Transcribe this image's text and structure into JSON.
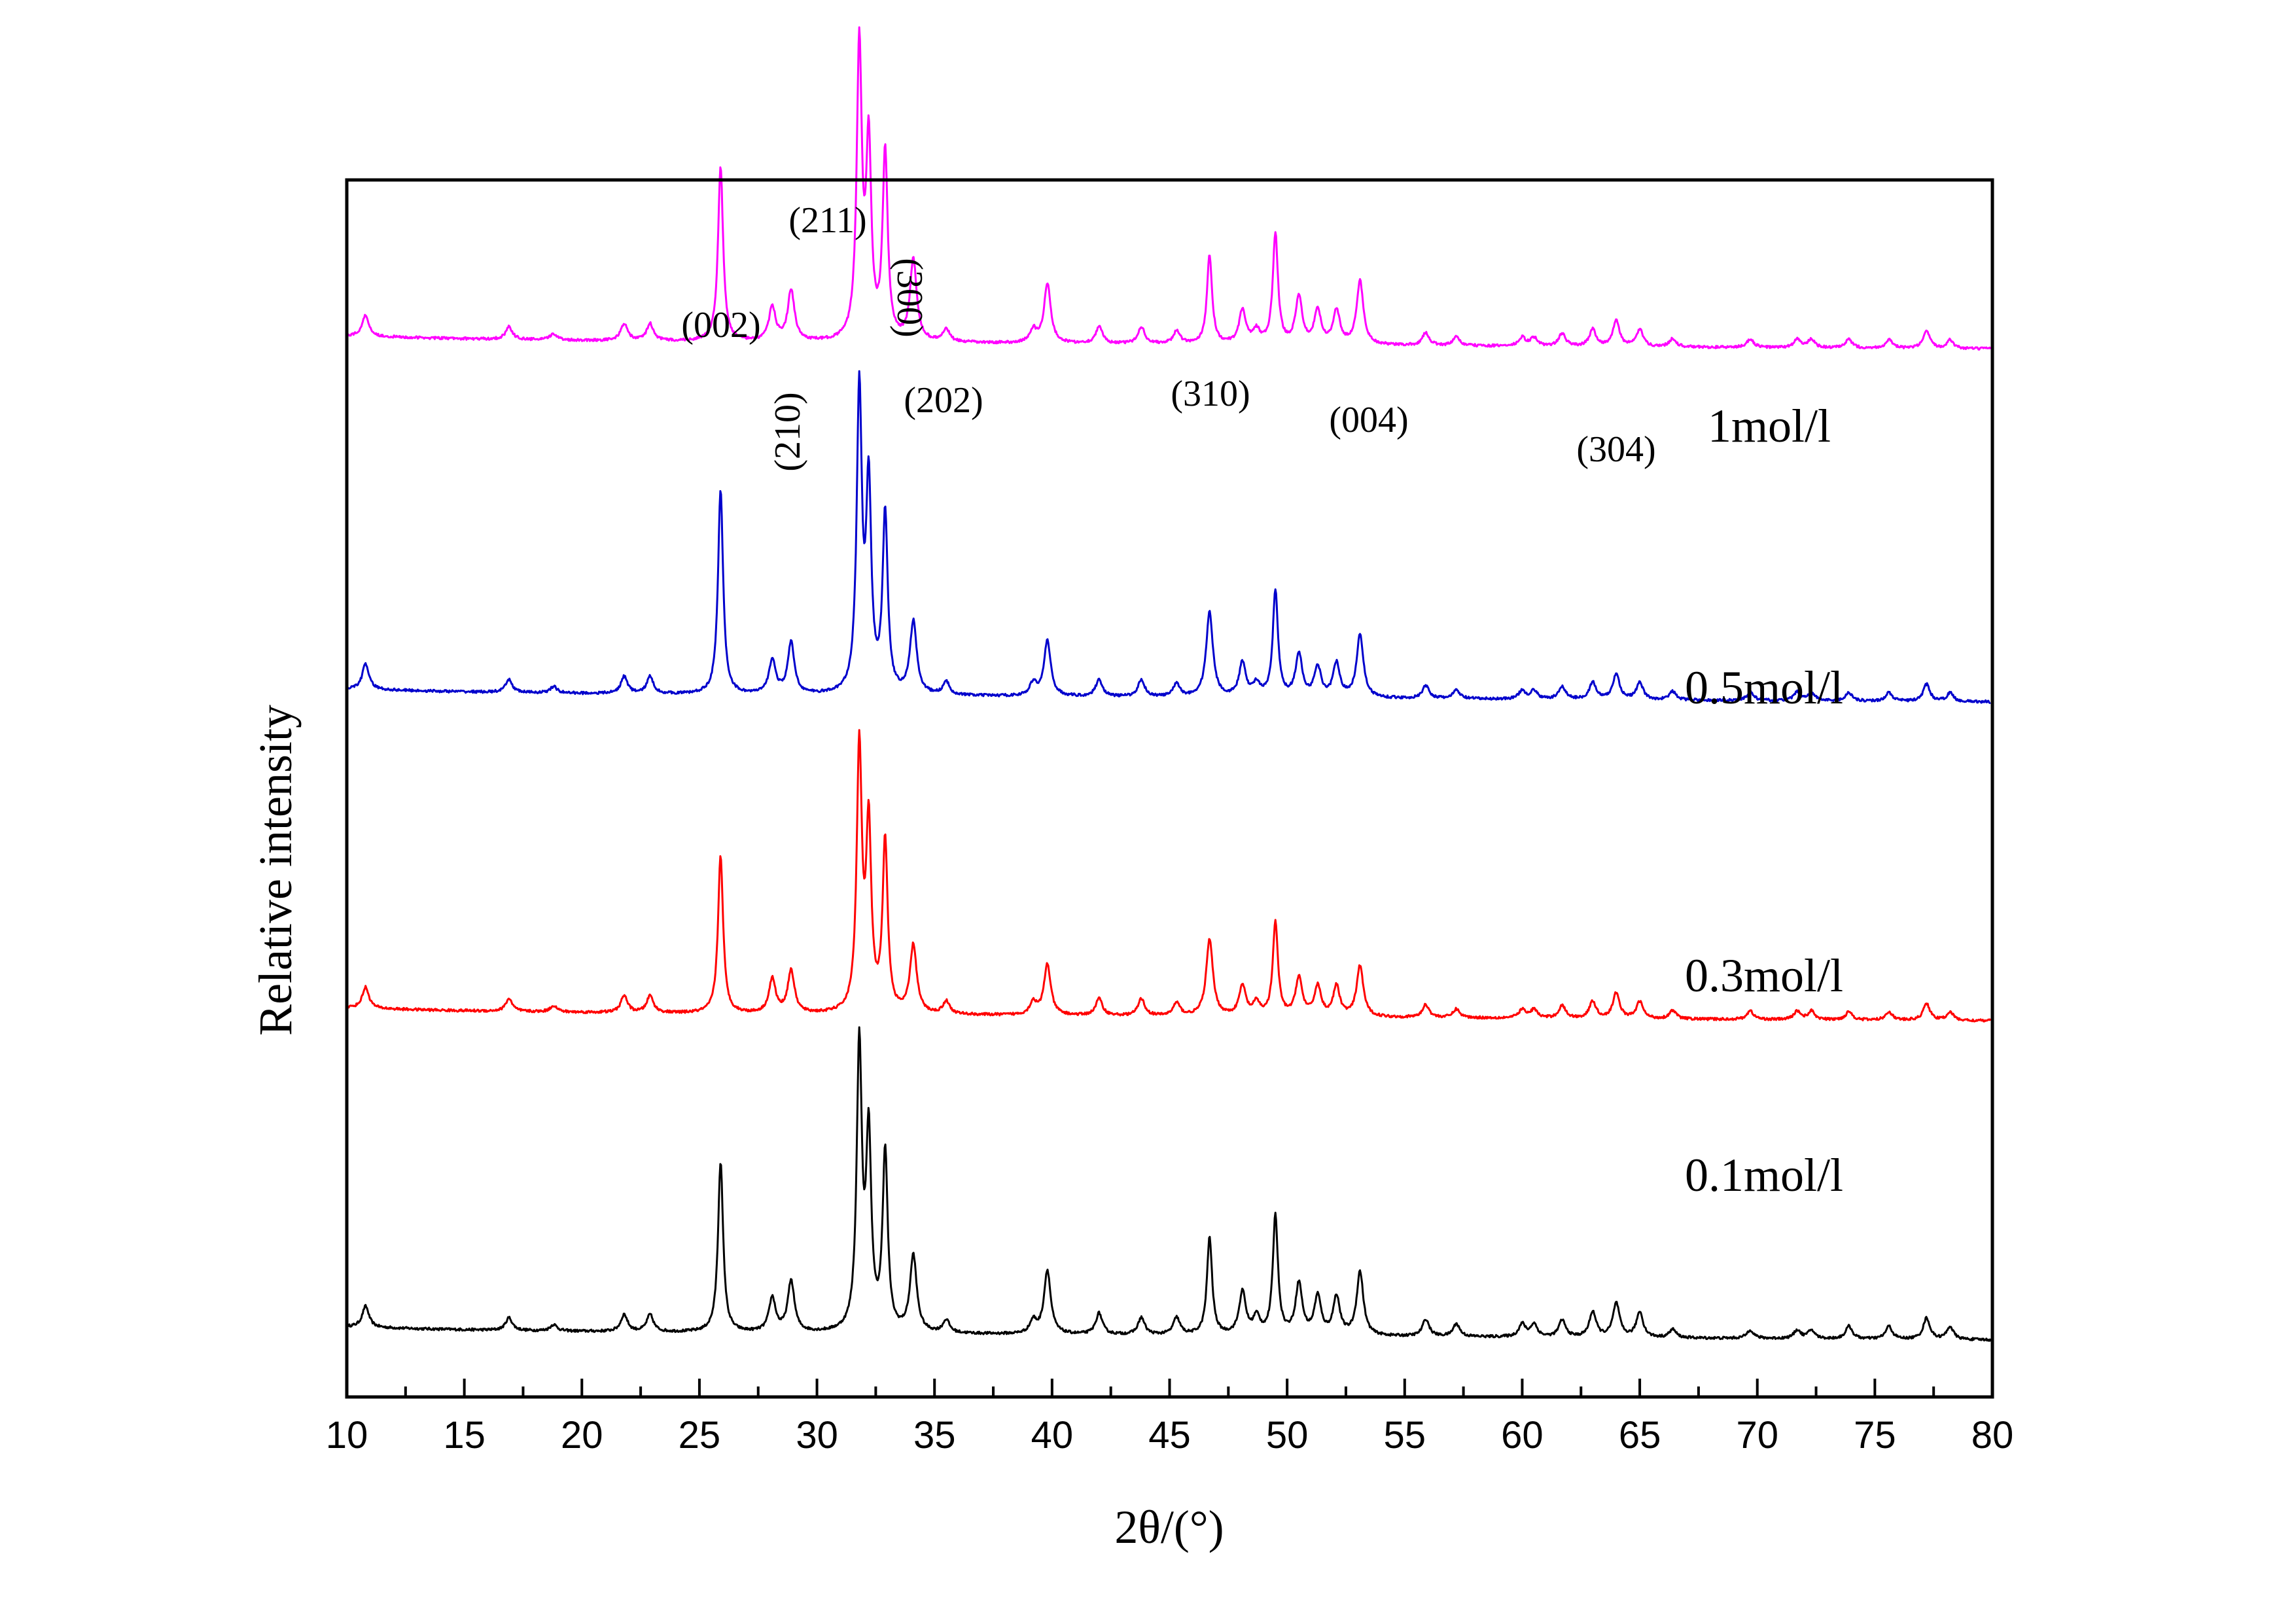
{
  "chart_data": {
    "type": "line",
    "title": "",
    "xlabel": "2θ/(°)",
    "ylabel": "Relative intensity",
    "xlim": [
      10,
      80
    ],
    "xticks": [
      10,
      15,
      20,
      25,
      30,
      35,
      40,
      45,
      50,
      55,
      60,
      65,
      70,
      75,
      80
    ],
    "yticks_shown": false,
    "grid": false,
    "legend": "none (inline labels at right)",
    "series": [
      {
        "name": "0.1mol/l",
        "color": "#000000",
        "offset": 0,
        "peaks": [
          [
            10.8,
            5
          ],
          [
            16.9,
            3
          ],
          [
            18.8,
            1.5
          ],
          [
            21.8,
            4
          ],
          [
            22.9,
            4
          ],
          [
            25.9,
            40
          ],
          [
            28.1,
            8
          ],
          [
            28.9,
            12
          ],
          [
            31.8,
            67
          ],
          [
            32.2,
            45
          ],
          [
            32.9,
            42
          ],
          [
            34.1,
            18
          ],
          [
            35.5,
            3
          ],
          [
            39.2,
            3
          ],
          [
            39.8,
            15
          ],
          [
            42.0,
            5
          ],
          [
            43.8,
            4
          ],
          [
            45.3,
            4
          ],
          [
            46.7,
            23
          ],
          [
            48.1,
            10
          ],
          [
            48.7,
            4
          ],
          [
            49.5,
            28
          ],
          [
            50.5,
            12
          ],
          [
            51.3,
            9
          ],
          [
            52.1,
            9
          ],
          [
            53.1,
            15
          ],
          [
            55.9,
            4
          ],
          [
            57.2,
            3
          ],
          [
            60.0,
            3
          ],
          [
            60.5,
            3
          ],
          [
            61.7,
            4
          ],
          [
            63.0,
            6
          ],
          [
            64.0,
            8
          ],
          [
            65.0,
            6
          ],
          [
            66.4,
            2
          ],
          [
            69.7,
            2
          ],
          [
            71.7,
            2
          ],
          [
            72.3,
            2
          ],
          [
            73.9,
            3
          ],
          [
            75.6,
            3
          ],
          [
            77.2,
            5
          ],
          [
            78.2,
            3
          ]
        ]
      },
      {
        "name": "0.3mol/l",
        "color": "#ff0000",
        "offset": 75,
        "peaks": [
          [
            10.8,
            5
          ],
          [
            16.9,
            3
          ],
          [
            18.8,
            1.5
          ],
          [
            21.8,
            4
          ],
          [
            22.9,
            4
          ],
          [
            25.9,
            37
          ],
          [
            28.1,
            8
          ],
          [
            28.9,
            10
          ],
          [
            31.8,
            62
          ],
          [
            32.2,
            43
          ],
          [
            32.9,
            40
          ],
          [
            34.1,
            16
          ],
          [
            35.5,
            3
          ],
          [
            39.2,
            3
          ],
          [
            39.8,
            12
          ],
          [
            42.0,
            4
          ],
          [
            43.8,
            4
          ],
          [
            45.3,
            3
          ],
          [
            46.7,
            18
          ],
          [
            48.1,
            7
          ],
          [
            48.7,
            3
          ],
          [
            49.5,
            22
          ],
          [
            50.5,
            9
          ],
          [
            51.3,
            7
          ],
          [
            52.1,
            7
          ],
          [
            53.1,
            12
          ],
          [
            55.9,
            3
          ],
          [
            57.2,
            2
          ],
          [
            60.0,
            2
          ],
          [
            60.5,
            2
          ],
          [
            61.7,
            3
          ],
          [
            63.0,
            4
          ],
          [
            64.0,
            6
          ],
          [
            65.0,
            4
          ],
          [
            66.4,
            2
          ],
          [
            69.7,
            2
          ],
          [
            71.7,
            2
          ],
          [
            72.3,
            2
          ],
          [
            73.9,
            2
          ],
          [
            75.6,
            2
          ],
          [
            77.2,
            4
          ],
          [
            78.2,
            2
          ]
        ]
      },
      {
        "name": "0.5mol/l",
        "color": "#0000cc",
        "offset": 150,
        "peaks": [
          [
            10.8,
            6
          ],
          [
            16.9,
            3
          ],
          [
            18.8,
            1.5
          ],
          [
            21.8,
            4
          ],
          [
            22.9,
            4
          ],
          [
            25.9,
            48
          ],
          [
            28.1,
            8
          ],
          [
            28.9,
            12
          ],
          [
            31.8,
            71
          ],
          [
            32.2,
            48
          ],
          [
            32.9,
            42
          ],
          [
            34.1,
            17
          ],
          [
            35.5,
            3
          ],
          [
            39.2,
            3
          ],
          [
            39.8,
            13
          ],
          [
            42.0,
            4
          ],
          [
            43.8,
            4
          ],
          [
            45.3,
            3
          ],
          [
            46.7,
            20
          ],
          [
            48.1,
            8
          ],
          [
            48.7,
            3
          ],
          [
            49.5,
            25
          ],
          [
            50.5,
            10
          ],
          [
            51.3,
            7
          ],
          [
            52.1,
            8
          ],
          [
            53.1,
            15
          ],
          [
            55.9,
            3
          ],
          [
            57.2,
            2
          ],
          [
            60.0,
            2
          ],
          [
            60.5,
            2
          ],
          [
            61.7,
            3
          ],
          [
            63.0,
            4
          ],
          [
            64.0,
            6
          ],
          [
            65.0,
            4
          ],
          [
            66.4,
            2
          ],
          [
            69.7,
            2
          ],
          [
            71.7,
            2
          ],
          [
            72.3,
            2
          ],
          [
            73.9,
            2
          ],
          [
            75.6,
            2
          ],
          [
            77.2,
            4
          ],
          [
            78.2,
            2
          ]
        ]
      },
      {
        "name": "1mol/l",
        "color": "#ff00ff",
        "offset": 233,
        "peaks": [
          [
            10.8,
            5
          ],
          [
            16.9,
            3
          ],
          [
            18.8,
            1.5
          ],
          [
            21.8,
            4
          ],
          [
            22.9,
            4
          ],
          [
            25.9,
            41
          ],
          [
            28.1,
            8
          ],
          [
            28.9,
            12
          ],
          [
            31.8,
            69
          ],
          [
            32.2,
            45
          ],
          [
            32.9,
            44
          ],
          [
            34.1,
            19
          ],
          [
            35.5,
            3
          ],
          [
            39.2,
            3
          ],
          [
            39.8,
            14
          ],
          [
            42.0,
            4
          ],
          [
            43.8,
            4
          ],
          [
            45.3,
            3
          ],
          [
            46.7,
            21
          ],
          [
            48.1,
            8
          ],
          [
            48.7,
            3
          ],
          [
            49.5,
            26
          ],
          [
            50.5,
            11
          ],
          [
            51.3,
            8
          ],
          [
            52.1,
            8
          ],
          [
            53.1,
            15
          ],
          [
            55.9,
            3
          ],
          [
            57.2,
            2
          ],
          [
            60.0,
            2
          ],
          [
            60.5,
            2
          ],
          [
            61.7,
            3
          ],
          [
            63.0,
            4
          ],
          [
            64.0,
            6
          ],
          [
            65.0,
            4
          ],
          [
            66.4,
            2
          ],
          [
            69.7,
            2
          ],
          [
            71.7,
            2
          ],
          [
            72.3,
            2
          ],
          [
            73.9,
            2
          ],
          [
            75.6,
            2
          ],
          [
            77.2,
            4
          ],
          [
            78.2,
            2
          ]
        ]
      }
    ],
    "peak_annotations": [
      {
        "label": "(002)",
        "x": 25.9,
        "rotated": false
      },
      {
        "label": "(210)",
        "x": 28.9,
        "rotated": true
      },
      {
        "label": "(211)",
        "x": 31.8,
        "rotated": false
      },
      {
        "label": "(300)",
        "x": 32.9,
        "rotated": true
      },
      {
        "label": "(202)",
        "x": 34.1,
        "rotated": false
      },
      {
        "label": "(310)",
        "x": 46.7,
        "rotated": false
      },
      {
        "label": "(004)",
        "x": 53.1,
        "rotated": false
      },
      {
        "label": "(304)",
        "x": 64.0,
        "rotated": false
      }
    ]
  }
}
